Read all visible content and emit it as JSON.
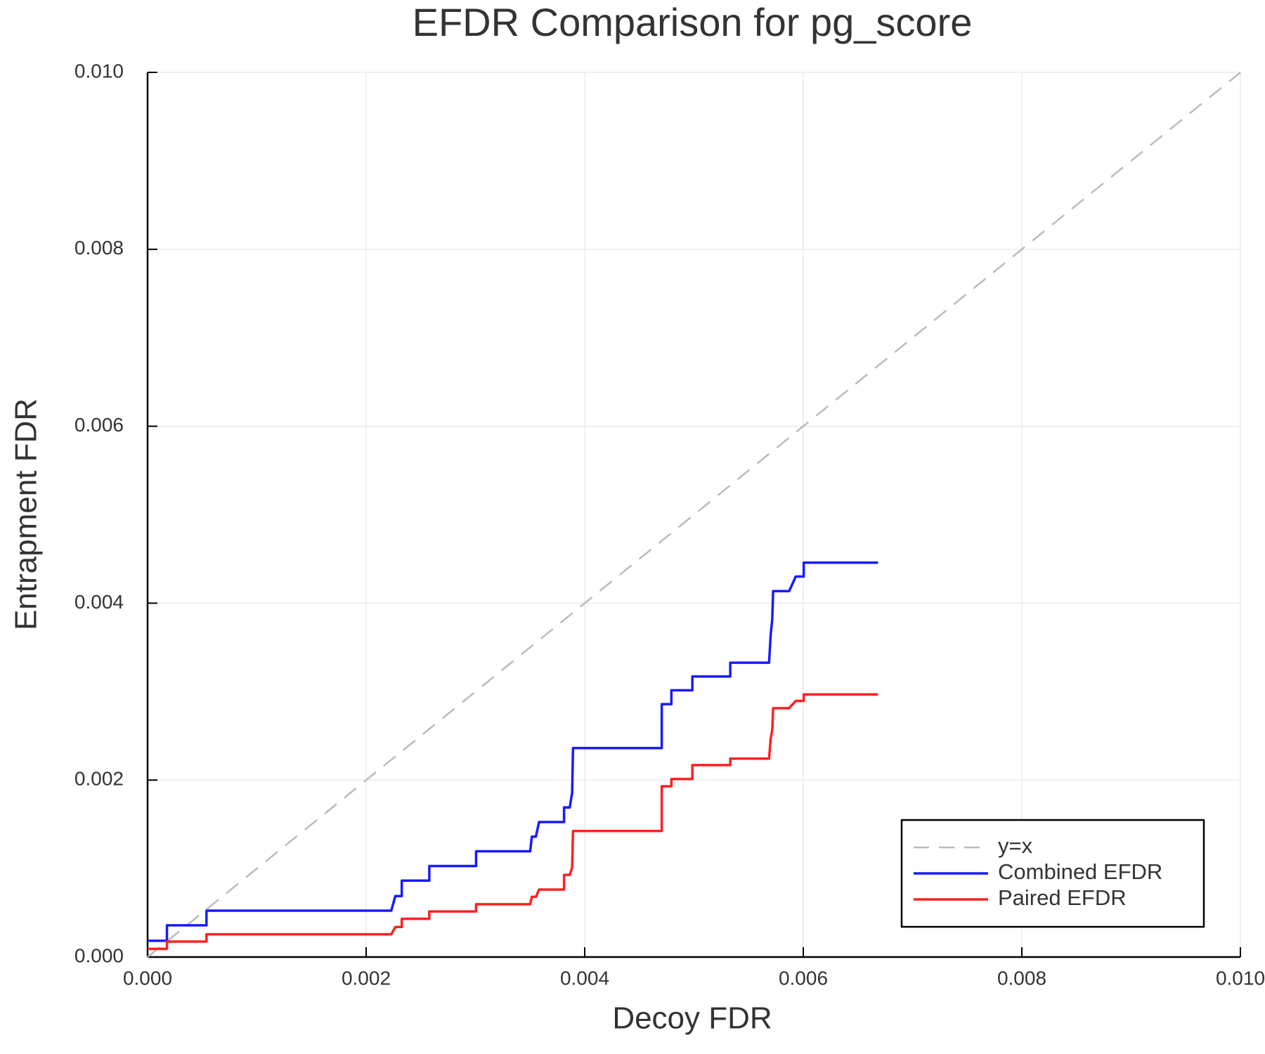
{
  "chart_data": {
    "type": "line",
    "title": "EFDR Comparison for pg_score",
    "x_label": "Decoy FDR",
    "y_label": "Entrapment FDR",
    "xlim": [
      0,
      0.01
    ],
    "ylim": [
      0,
      0.01
    ],
    "xticks": [
      {
        "value": 0,
        "label": "0.000"
      },
      {
        "value": 0.002,
        "label": "0.002"
      },
      {
        "value": 0.004,
        "label": "0.004"
      },
      {
        "value": 0.006,
        "label": "0.006"
      },
      {
        "value": 0.008,
        "label": "0.008"
      },
      {
        "value": 0.01,
        "label": "0.010"
      }
    ],
    "yticks": [
      {
        "value": 0,
        "label": "0.000"
      },
      {
        "value": 0.002,
        "label": "0.002"
      },
      {
        "value": 0.004,
        "label": "0.004"
      },
      {
        "value": 0.006,
        "label": "0.006"
      },
      {
        "value": 0.008,
        "label": "0.008"
      },
      {
        "value": 0.01,
        "label": "0.010"
      }
    ],
    "grid": true,
    "legend": "lower right",
    "series": [
      {
        "name": "y=x",
        "color": "#bbbbbb",
        "linestyle": "dashed",
        "x": [
          0,
          0.01
        ],
        "values": [
          0,
          0.01
        ]
      },
      {
        "name": "Combined EFDR",
        "color": "#1a1aff",
        "linestyle": "solid",
        "x": [
          0,
          0.000177,
          0.000177,
          0.000539,
          0.000539,
          0.00223,
          0.002267,
          0.002326,
          0.002326,
          0.002578,
          0.002578,
          0.003006,
          0.003006,
          0.003501,
          0.003516,
          0.003553,
          0.003582,
          0.003811,
          0.003811,
          0.003863,
          0.003885,
          0.003893,
          0.004705,
          0.004705,
          0.004793,
          0.004793,
          0.004985,
          0.004985,
          0.005332,
          0.005332,
          0.005687,
          0.005702,
          0.005716,
          0.005724,
          0.005871,
          0.005931,
          0.006004,
          0.006004,
          0.006684
        ],
        "values": [
          0.000184,
          0.000184,
          0.000358,
          0.000358,
          0.000524,
          0.000524,
          0.000689,
          0.000689,
          0.000864,
          0.000864,
          0.001029,
          0.001029,
          0.001195,
          0.001195,
          0.00136,
          0.00136,
          0.001526,
          0.001526,
          0.001691,
          0.001691,
          0.001857,
          0.002362,
          0.002362,
          0.002858,
          0.002858,
          0.003015,
          0.003015,
          0.003171,
          0.003171,
          0.003327,
          0.003327,
          0.003649,
          0.003814,
          0.004136,
          0.004136,
          0.004301,
          0.004301,
          0.004458,
          0.004458
        ]
      },
      {
        "name": "Paired EFDR",
        "color": "#ff2020",
        "linestyle": "solid",
        "x": [
          0,
          0.000177,
          0.000177,
          0.000539,
          0.000539,
          0.00223,
          0.002267,
          0.002326,
          0.002326,
          0.002578,
          0.002578,
          0.003006,
          0.003006,
          0.003501,
          0.003516,
          0.003553,
          0.003582,
          0.003811,
          0.003811,
          0.003863,
          0.003885,
          0.003893,
          0.004705,
          0.004705,
          0.004793,
          0.004793,
          0.004985,
          0.004985,
          0.005332,
          0.005332,
          0.005687,
          0.005702,
          0.005716,
          0.005724,
          0.005871,
          0.005931,
          0.006004,
          0.006004,
          0.006684
        ],
        "values": [
          9.2e-05,
          9.2e-05,
          0.000175,
          0.000175,
          0.000257,
          0.000257,
          0.00034,
          0.00034,
          0.000432,
          0.000432,
          0.000515,
          0.000515,
          0.000597,
          0.000597,
          0.00068,
          0.00068,
          0.000763,
          0.000763,
          0.000928,
          0.000928,
          0.001011,
          0.001425,
          0.001425,
          0.00193,
          0.00193,
          0.002013,
          0.002013,
          0.002169,
          0.002169,
          0.002243,
          0.002243,
          0.002472,
          0.002564,
          0.002813,
          0.002813,
          0.002895,
          0.002895,
          0.002969,
          0.002969
        ]
      }
    ]
  }
}
